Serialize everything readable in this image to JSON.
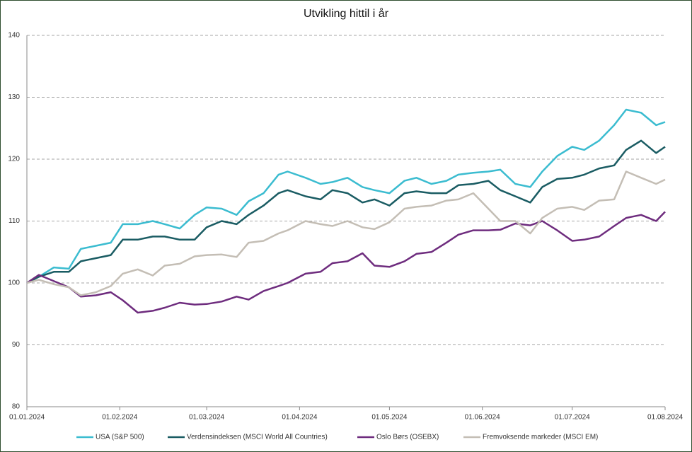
{
  "chart_data": {
    "type": "line",
    "title": "Utvikling hittil i år",
    "x": [
      "2024-01-01",
      "2024-01-05",
      "2024-01-10",
      "2024-01-15",
      "2024-01-19",
      "2024-01-24",
      "2024-01-29",
      "2024-02-02",
      "2024-02-07",
      "2024-02-12",
      "2024-02-16",
      "2024-02-21",
      "2024-02-26",
      "2024-03-01",
      "2024-03-06",
      "2024-03-11",
      "2024-03-15",
      "2024-03-20",
      "2024-03-25",
      "2024-03-28",
      "2024-04-03",
      "2024-04-08",
      "2024-04-12",
      "2024-04-17",
      "2024-04-22",
      "2024-04-26",
      "2024-05-01",
      "2024-05-06",
      "2024-05-10",
      "2024-05-15",
      "2024-05-20",
      "2024-05-24",
      "2024-05-29",
      "2024-06-03",
      "2024-06-07",
      "2024-06-12",
      "2024-06-17",
      "2024-06-21",
      "2024-06-26",
      "2024-07-01",
      "2024-07-05",
      "2024-07-10",
      "2024-07-15",
      "2024-07-19",
      "2024-07-24",
      "2024-07-29",
      "2024-08-01"
    ],
    "series": [
      {
        "name": "USA (S&P 500)",
        "color": "#3bbcd0",
        "values": [
          100,
          101,
          102.5,
          102.3,
          105.5,
          106,
          106.5,
          109.5,
          109.5,
          110,
          109.5,
          108.8,
          111,
          112.2,
          112,
          111,
          113.2,
          114.5,
          117.5,
          118,
          117,
          116,
          116.3,
          117,
          115.5,
          115,
          114.5,
          116.5,
          117,
          116,
          116.5,
          117.5,
          117.8,
          118,
          118.3,
          116,
          115.5,
          118,
          120.5,
          122,
          121.5,
          123,
          125.5,
          128,
          127.5,
          125.5,
          126
        ]
      },
      {
        "name": "Verdensindeksen (MSCI World All Countries)",
        "color": "#1a5c63",
        "values": [
          100,
          101,
          101.8,
          101.8,
          103.5,
          104,
          104.5,
          107,
          107,
          107.5,
          107.5,
          107,
          107,
          109,
          110,
          109.5,
          111,
          112.5,
          114.5,
          115,
          114,
          113.5,
          115,
          114.5,
          113,
          113.5,
          112.5,
          114.5,
          114.8,
          114.5,
          114.5,
          115.8,
          116,
          116.5,
          115,
          114,
          113,
          115.5,
          116.8,
          117,
          117.5,
          118.5,
          119,
          121.5,
          123,
          121,
          122
        ]
      },
      {
        "name": "Oslo Børs (OSEBX)",
        "color": "#6e2c7e",
        "values": [
          100,
          101.3,
          100.3,
          99.3,
          97.8,
          98,
          98.5,
          97.2,
          95.2,
          95.5,
          96,
          96.8,
          96.5,
          96.6,
          97,
          97.8,
          97.3,
          98.7,
          99.5,
          100,
          101.5,
          101.8,
          103.2,
          103.5,
          104.8,
          102.8,
          102.6,
          103.5,
          104.7,
          105,
          106.5,
          107.8,
          108.5,
          108.5,
          108.6,
          109.6,
          109.3,
          110,
          108.5,
          106.8,
          107,
          107.5,
          109.2,
          110.5,
          111,
          110,
          111.5
        ]
      },
      {
        "name": "Fremvoksende markeder (MSCI EM)",
        "color": "#c4beb5",
        "values": [
          100,
          100.5,
          99.8,
          99.3,
          98,
          98.5,
          99.5,
          101.5,
          102.2,
          101.2,
          102.8,
          103.1,
          104.3,
          104.5,
          104.6,
          104.2,
          106.5,
          106.8,
          108,
          108.5,
          110,
          109.5,
          109.2,
          110,
          109,
          108.7,
          109.8,
          112,
          112.3,
          112.5,
          113.3,
          113.5,
          114.5,
          112,
          110,
          110,
          108,
          110.5,
          112,
          112.3,
          111.8,
          113.3,
          113.5,
          118,
          117,
          116,
          116.7
        ]
      }
    ],
    "xlim": [
      "2024-01-01",
      "2024-08-01"
    ],
    "xticks": [
      {
        "value": "2024-01-01",
        "label": "01.01.2024"
      },
      {
        "value": "2024-02-01",
        "label": "01.02.2024"
      },
      {
        "value": "2024-03-01",
        "label": "01.03.2024"
      },
      {
        "value": "2024-04-01",
        "label": "01.04.2024"
      },
      {
        "value": "2024-05-01",
        "label": "01.05.2024"
      },
      {
        "value": "2024-06-01",
        "label": "01.06.2024"
      },
      {
        "value": "2024-07-01",
        "label": "01.07.2024"
      },
      {
        "value": "2024-08-01",
        "label": "01.08.2024"
      }
    ],
    "ylim": [
      80,
      140
    ],
    "yticks": [
      80,
      90,
      100,
      110,
      120,
      130,
      140
    ],
    "grid": true,
    "legend": "bottom"
  }
}
